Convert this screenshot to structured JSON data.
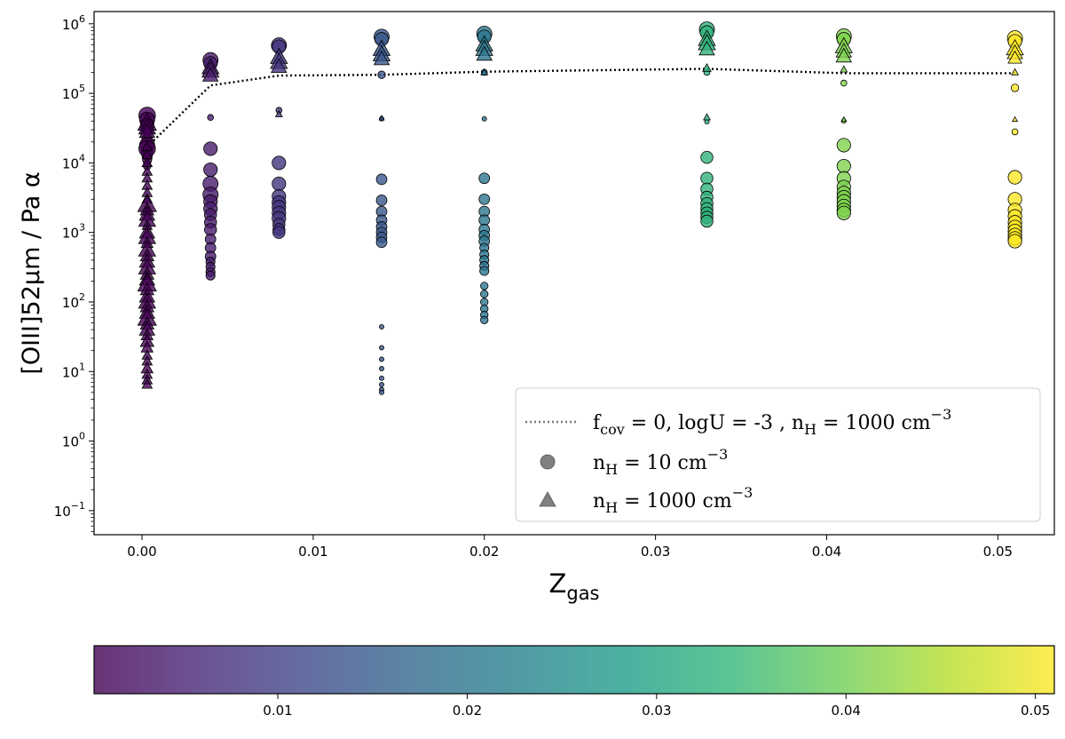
{
  "chart_data": {
    "type": "scatter",
    "x_scale": "linear",
    "y_scale": "log",
    "xlabel_main": "Z",
    "xlabel_sub": "gas",
    "ylabel": "[OIII]52μm / Pa α",
    "xlim": [
      -0.0028,
      0.0533
    ],
    "ylim": [
      0.045,
      1500000
    ],
    "x_ticks": [
      {
        "value": 0.0,
        "label": "0.00"
      },
      {
        "value": 0.01,
        "label": "0.01"
      },
      {
        "value": 0.02,
        "label": "0.02"
      },
      {
        "value": 0.03,
        "label": "0.03"
      },
      {
        "value": 0.04,
        "label": "0.04"
      },
      {
        "value": 0.05,
        "label": "0.05"
      }
    ],
    "y_ticks": [
      {
        "value": 0.1,
        "base": "10",
        "exp": "−1"
      },
      {
        "value": 1,
        "base": "10",
        "exp": "0"
      },
      {
        "value": 10,
        "base": "10",
        "exp": "1"
      },
      {
        "value": 100,
        "base": "10",
        "exp": "2"
      },
      {
        "value": 1000,
        "base": "10",
        "exp": "3"
      },
      {
        "value": 10000,
        "base": "10",
        "exp": "4"
      },
      {
        "value": 100000,
        "base": "10",
        "exp": "5"
      },
      {
        "value": 1000000,
        "base": "10",
        "exp": "6"
      }
    ],
    "legend": {
      "position": "lower-right",
      "entries": [
        {
          "marker": "dotted-line",
          "text_parts": [
            [
              "f",
              ""
            ],
            [
              "cov",
              "sub"
            ],
            [
              " = 0, logU = -3 , n",
              ""
            ],
            [
              "H",
              "sub"
            ],
            [
              " = 1000 cm",
              ""
            ],
            [
              "−3",
              "sup"
            ]
          ]
        },
        {
          "marker": "circle",
          "text_parts": [
            [
              "n",
              ""
            ],
            [
              "H",
              "sub"
            ],
            [
              " = 10 cm",
              ""
            ],
            [
              "−3",
              "sup"
            ]
          ]
        },
        {
          "marker": "triangle",
          "text_parts": [
            [
              "n",
              ""
            ],
            [
              "H",
              "sub"
            ],
            [
              " = 1000 cm",
              ""
            ],
            [
              "−3",
              "sup"
            ]
          ]
        }
      ]
    },
    "line_series": {
      "name": "f_cov = 0, logU = -3 , n_H = 1000 cm^-3",
      "style": "dotted",
      "x": [
        0.0003,
        0.004,
        0.008,
        0.014,
        0.02,
        0.033,
        0.041,
        0.051
      ],
      "y": [
        17000,
        130000,
        180000,
        185000,
        205000,
        225000,
        195000,
        195000
      ]
    },
    "circle_series": [
      {
        "z": 0.0003,
        "points": [
          [
            48000,
            11
          ],
          [
            42000,
            10
          ],
          [
            35000,
            9
          ],
          [
            30000,
            8
          ],
          [
            22000,
            7
          ],
          [
            18000,
            10
          ],
          [
            15000,
            8
          ],
          [
            13000,
            7
          ],
          [
            11000,
            6
          ],
          [
            9000,
            5
          ],
          [
            16000,
            11
          ]
        ]
      },
      {
        "z": 0.004,
        "points": [
          [
            300000,
            10
          ],
          [
            270000,
            9
          ],
          [
            45000,
            4
          ],
          [
            16000,
            9
          ],
          [
            8000,
            9
          ],
          [
            5000,
            10
          ],
          [
            3500,
            10
          ],
          [
            2800,
            9
          ],
          [
            2200,
            9
          ],
          [
            1800,
            8
          ],
          [
            1400,
            8
          ],
          [
            1100,
            8
          ],
          [
            800,
            7
          ],
          [
            600,
            7
          ],
          [
            450,
            7
          ],
          [
            380,
            6
          ],
          [
            320,
            6
          ],
          [
            270,
            6
          ],
          [
            240,
            6
          ]
        ]
      },
      {
        "z": 0.008,
        "points": [
          [
            490000,
            10
          ],
          [
            470000,
            9
          ],
          [
            57000,
            4
          ],
          [
            10000,
            9
          ],
          [
            5000,
            9
          ],
          [
            3300,
            9
          ],
          [
            2700,
            9
          ],
          [
            2300,
            9
          ],
          [
            1900,
            9
          ],
          [
            1600,
            9
          ],
          [
            1300,
            8
          ],
          [
            1100,
            8
          ],
          [
            1000,
            8
          ]
        ]
      },
      {
        "z": 0.014,
        "points": [
          [
            650000,
            10
          ],
          [
            600000,
            9
          ],
          [
            185000,
            5
          ],
          [
            43000,
            3
          ],
          [
            5800,
            7
          ],
          [
            2900,
            7
          ],
          [
            2000,
            7
          ],
          [
            1500,
            7
          ],
          [
            1200,
            7
          ],
          [
            1000,
            7
          ],
          [
            850,
            7
          ],
          [
            720,
            7
          ],
          [
            44,
            3
          ],
          [
            22,
            3
          ],
          [
            15,
            3
          ],
          [
            11,
            3
          ],
          [
            8,
            3
          ],
          [
            6.5,
            3
          ],
          [
            5.5,
            3
          ],
          [
            5,
            3
          ]
        ]
      },
      {
        "z": 0.02,
        "points": [
          [
            720000,
            10
          ],
          [
            650000,
            9
          ],
          [
            200000,
            4
          ],
          [
            43000,
            3
          ],
          [
            6000,
            7
          ],
          [
            3000,
            7
          ],
          [
            2000,
            7
          ],
          [
            1500,
            7
          ],
          [
            1100,
            7
          ],
          [
            900,
            7
          ],
          [
            750,
            7
          ],
          [
            600,
            6
          ],
          [
            480,
            6
          ],
          [
            400,
            6
          ],
          [
            330,
            6
          ],
          [
            280,
            6
          ],
          [
            170,
            5
          ],
          [
            130,
            5
          ],
          [
            100,
            5
          ],
          [
            80,
            5
          ],
          [
            65,
            5
          ],
          [
            55,
            5
          ]
        ]
      },
      {
        "z": 0.033,
        "points": [
          [
            830000,
            10
          ],
          [
            750000,
            9
          ],
          [
            200000,
            4
          ],
          [
            39000,
            3
          ],
          [
            12000,
            8
          ],
          [
            6000,
            8
          ],
          [
            4200,
            8
          ],
          [
            3200,
            8
          ],
          [
            2600,
            8
          ],
          [
            2200,
            8
          ],
          [
            1900,
            8
          ],
          [
            1650,
            8
          ],
          [
            1450,
            8
          ]
        ]
      },
      {
        "z": 0.041,
        "points": [
          [
            660000,
            10
          ],
          [
            600000,
            9
          ],
          [
            140000,
            4
          ],
          [
            40000,
            3
          ],
          [
            18000,
            9
          ],
          [
            9000,
            9
          ],
          [
            6000,
            9
          ],
          [
            4500,
            9
          ],
          [
            3700,
            9
          ],
          [
            3200,
            9
          ],
          [
            2800,
            9
          ],
          [
            2400,
            9
          ],
          [
            2100,
            9
          ],
          [
            1900,
            9
          ]
        ]
      },
      {
        "z": 0.051,
        "points": [
          [
            620000,
            10
          ],
          [
            560000,
            9
          ],
          [
            120000,
            5
          ],
          [
            28000,
            4
          ],
          [
            6200,
            9
          ],
          [
            3000,
            9
          ],
          [
            2100,
            9
          ],
          [
            1700,
            9
          ],
          [
            1400,
            9
          ],
          [
            1200,
            9
          ],
          [
            1050,
            9
          ],
          [
            920,
            9
          ],
          [
            820,
            9
          ],
          [
            750,
            9
          ]
        ]
      }
    ],
    "triangle_series": [
      {
        "z": 0.0003,
        "points": [
          [
            37000,
            11
          ],
          [
            32000,
            10
          ],
          [
            28000,
            9
          ],
          [
            17000,
            6
          ],
          [
            13000,
            6
          ],
          [
            10000,
            6
          ],
          [
            7500,
            6
          ],
          [
            6000,
            6
          ],
          [
            4700,
            6
          ],
          [
            3700,
            6
          ],
          [
            3000,
            6
          ],
          [
            2500,
            11
          ],
          [
            2100,
            8
          ],
          [
            1800,
            9
          ],
          [
            1500,
            10
          ],
          [
            1250,
            6
          ],
          [
            1000,
            9
          ],
          [
            850,
            10
          ],
          [
            700,
            7
          ],
          [
            560,
            10
          ],
          [
            460,
            8
          ],
          [
            380,
            9
          ],
          [
            310,
            10
          ],
          [
            250,
            8
          ],
          [
            210,
            9
          ],
          [
            180,
            11
          ],
          [
            150,
            8
          ],
          [
            120,
            9
          ],
          [
            100,
            10
          ],
          [
            85,
            8
          ],
          [
            70,
            9
          ],
          [
            58,
            11
          ],
          [
            48,
            8
          ],
          [
            40,
            9
          ],
          [
            33,
            7
          ],
          [
            27,
            8
          ],
          [
            22,
            7
          ],
          [
            17,
            6
          ],
          [
            14,
            6
          ],
          [
            11,
            7
          ],
          [
            9,
            6
          ],
          [
            7.5,
            6
          ],
          [
            6.5,
            6
          ]
        ]
      },
      {
        "z": 0.004,
        "points": [
          [
            235000,
            10
          ],
          [
            210000,
            10
          ],
          [
            180000,
            9
          ]
        ]
      },
      {
        "z": 0.008,
        "points": [
          [
            330000,
            10
          ],
          [
            280000,
            10
          ],
          [
            240000,
            9
          ],
          [
            50000,
            4
          ]
        ]
      },
      {
        "z": 0.014,
        "points": [
          [
            430000,
            10
          ],
          [
            360000,
            10
          ],
          [
            310000,
            9
          ],
          [
            44000,
            3
          ]
        ]
      },
      {
        "z": 0.02,
        "points": [
          [
            500000,
            10
          ],
          [
            430000,
            10
          ],
          [
            360000,
            9
          ],
          [
            200000,
            4
          ]
        ]
      },
      {
        "z": 0.033,
        "points": [
          [
            600000,
            10
          ],
          [
            520000,
            10
          ],
          [
            430000,
            9
          ],
          [
            230000,
            5
          ],
          [
            45000,
            4
          ]
        ]
      },
      {
        "z": 0.041,
        "points": [
          [
            470000,
            10
          ],
          [
            400000,
            9
          ],
          [
            340000,
            9
          ],
          [
            220000,
            4
          ],
          [
            42000,
            3
          ]
        ]
      },
      {
        "z": 0.051,
        "points": [
          [
            440000,
            10
          ],
          [
            380000,
            9
          ],
          [
            320000,
            8
          ],
          [
            200000,
            4
          ],
          [
            42000,
            3
          ]
        ]
      }
    ],
    "colormap": {
      "name": "viridis",
      "range": [
        0.0003,
        0.051
      ],
      "stops": [
        "#440154",
        "#482878",
        "#3e4989",
        "#31688e",
        "#26828e",
        "#1f9e89",
        "#35b779",
        "#6ece58",
        "#b5de2b",
        "#fde725"
      ],
      "marker_alpha": 0.8,
      "ticks": [
        {
          "value": 0.01,
          "label": "0.01"
        },
        {
          "value": 0.02,
          "label": "0.02"
        },
        {
          "value": 0.03,
          "label": "0.03"
        },
        {
          "value": 0.04,
          "label": "0.04"
        },
        {
          "value": 0.05,
          "label": "0.05"
        }
      ]
    }
  }
}
